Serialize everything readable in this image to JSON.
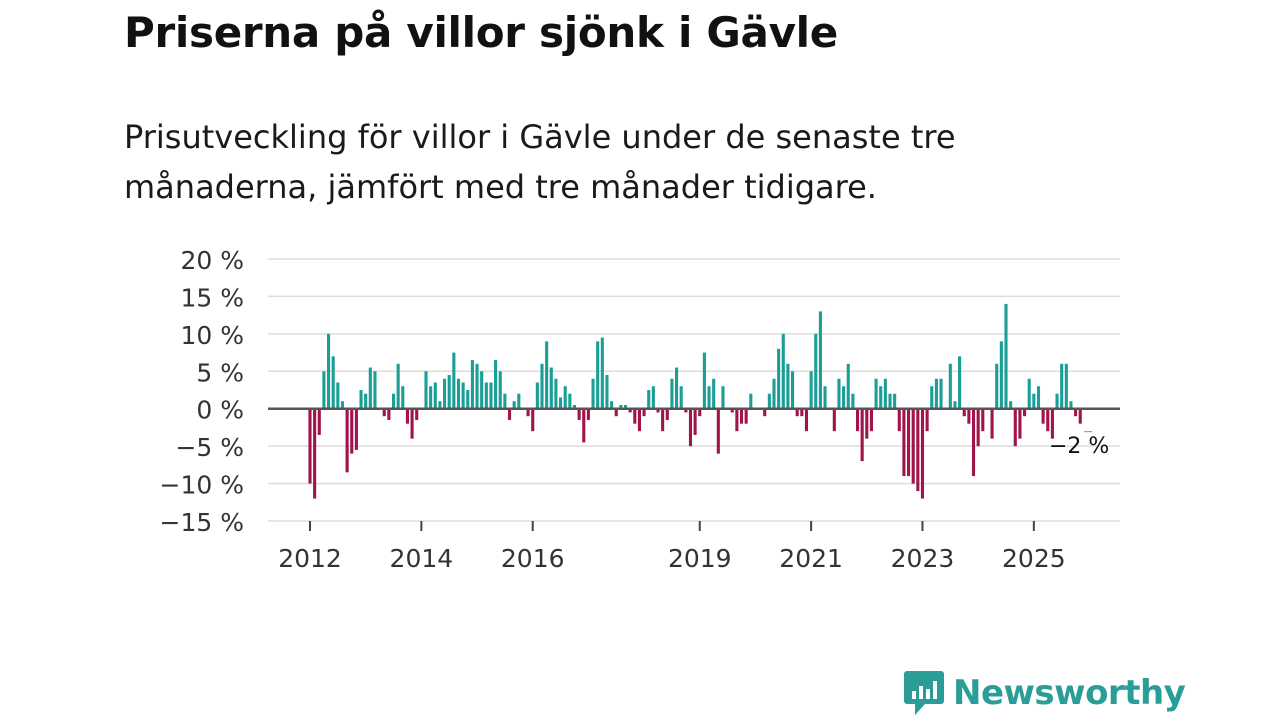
{
  "title": "Priserna på villor sjönk i Gävle",
  "subtitle": "Prisutveckling för villor i Gävle under de senaste tre månaderna, jämfört med tre månader tidigare.",
  "brand": {
    "name": "Newsworthy",
    "color": "#2a9d97"
  },
  "colors": {
    "positive": "#1a9e96",
    "negative": "#a1134b",
    "grid": "#dddddd",
    "zero": "#555555"
  },
  "chart_data": {
    "type": "bar",
    "title": "Priserna på villor sjönk i Gävle",
    "xlabel": "",
    "ylabel": "",
    "ylim": [
      -15,
      20
    ],
    "y_ticks": [
      20,
      15,
      10,
      5,
      0,
      -5,
      -10,
      -15
    ],
    "y_tick_labels": [
      "20 %",
      "15 %",
      "10 %",
      "5 %",
      "0 %",
      "−5 %",
      "−10 %",
      "−15 %"
    ],
    "x_start": "2012-01",
    "frequency": "monthly",
    "x_ticks": [
      {
        "label": "2012",
        "index": 0
      },
      {
        "label": "2014",
        "index": 24
      },
      {
        "label": "2016",
        "index": 48
      },
      {
        "label": "2019",
        "index": 84
      },
      {
        "label": "2021",
        "index": 108
      },
      {
        "label": "2023",
        "index": 132
      },
      {
        "label": "2025",
        "index": 156
      }
    ],
    "annotation": {
      "label": "−2 %",
      "index": 166
    },
    "values": [
      -10,
      -12,
      -3.5,
      5,
      10,
      7,
      3.5,
      1,
      -8.5,
      -6,
      -5.5,
      2.5,
      2,
      5.5,
      5,
      0,
      -1,
      -1.5,
      2,
      6,
      3,
      -2,
      -4,
      -1.5,
      0,
      5,
      3,
      3.5,
      1,
      4,
      4.5,
      7.5,
      4,
      3.5,
      2.5,
      6.5,
      6,
      5,
      3.5,
      3.5,
      6.5,
      5,
      2,
      -1.5,
      1,
      2,
      0,
      -1,
      -3,
      3.5,
      6,
      9,
      5.5,
      4,
      1.5,
      3,
      2,
      0.5,
      -1.5,
      -4.5,
      -1.5,
      4,
      9,
      9.5,
      4.5,
      1,
      -1,
      0.5,
      0.5,
      -0.5,
      -2,
      -3,
      -1,
      2.5,
      3,
      -0.5,
      -3,
      -1.5,
      4,
      5.5,
      3,
      -0.5,
      -5,
      -3.5,
      -1,
      7.5,
      3,
      4,
      -6,
      3,
      0,
      -0.5,
      -3,
      -2,
      -2,
      2,
      0,
      0,
      -1,
      2,
      4,
      8,
      10,
      6,
      5,
      -1,
      -1,
      -3,
      5,
      10,
      13,
      3,
      0,
      -3,
      4,
      3,
      6,
      2,
      -3,
      -7,
      -4,
      -3,
      4,
      3,
      4,
      2,
      2,
      -3,
      -9,
      -9,
      -10,
      -11,
      -12,
      -3,
      3,
      4,
      4,
      0,
      6,
      1,
      7,
      -1,
      -2,
      -9,
      -5,
      -3,
      0,
      -4,
      6,
      9,
      14,
      1,
      -5,
      -4,
      -1,
      4,
      2,
      3,
      -2,
      -3,
      -4,
      2,
      6,
      6,
      1,
      -1,
      -2
    ]
  }
}
